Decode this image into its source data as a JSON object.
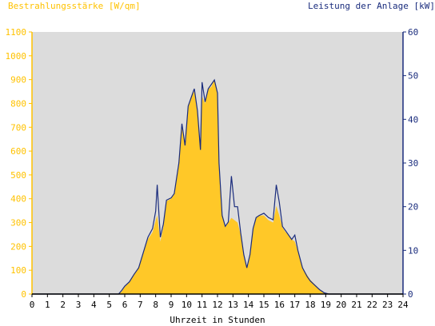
{
  "header": {
    "left_title": "Bestrahlungsstärke [W/qm]",
    "right_title": "Leistung der Anlage [kW]"
  },
  "colors": {
    "irradiance": "#ffc828",
    "power": "#1a2c7d",
    "plot_bg": "#dcdcdc",
    "left_axis": "#ffc200",
    "right_axis": "#1a2c7d"
  },
  "chart_data": {
    "type": "area",
    "xlabel": "Uhrzeit in Stunden",
    "xlim": [
      0,
      24
    ],
    "x_ticks": [
      0,
      1,
      2,
      3,
      4,
      5,
      6,
      7,
      8,
      9,
      10,
      11,
      12,
      13,
      14,
      15,
      16,
      17,
      18,
      19,
      20,
      21,
      22,
      23,
      24
    ],
    "ylim_left": [
      0,
      1100
    ],
    "y_ticks_left": [
      0,
      100,
      200,
      300,
      400,
      500,
      600,
      700,
      800,
      900,
      1000,
      1100
    ],
    "ylim_right": [
      0,
      60
    ],
    "y_ticks_right": [
      0,
      10,
      20,
      30,
      40,
      50,
      60
    ],
    "ylabel_left": "Bestrahlungsstärke [W/qm]",
    "ylabel_right": "Leistung der Anlage [kW]",
    "series": [
      {
        "name": "Bestrahlungsstärke [W/qm]",
        "axis": "left",
        "style": "area",
        "x": [
          0,
          5.6,
          5.8,
          6,
          6.3,
          6.6,
          6.9,
          7.2,
          7.5,
          7.8,
          8,
          8.1,
          8.3,
          8.5,
          8.7,
          9,
          9.2,
          9.5,
          9.7,
          9.9,
          10.1,
          10.3,
          10.5,
          10.7,
          10.9,
          11,
          11.2,
          11.4,
          11.6,
          11.8,
          12,
          12.1,
          12.3,
          12.5,
          12.7,
          12.9,
          13.1,
          13.3,
          13.5,
          13.7,
          13.9,
          14.1,
          14.3,
          14.5,
          14.7,
          15,
          15.3,
          15.6,
          15.8,
          16,
          16.2,
          16.4,
          16.6,
          16.8,
          17,
          17.2,
          17.5,
          17.8,
          18,
          18.3,
          18.6,
          18.9,
          19.2,
          24
        ],
        "y": [
          0,
          0,
          10,
          30,
          50,
          80,
          110,
          170,
          230,
          260,
          310,
          330,
          220,
          280,
          390,
          400,
          420,
          550,
          700,
          620,
          780,
          830,
          850,
          760,
          600,
          830,
          800,
          860,
          870,
          900,
          840,
          560,
          340,
          280,
          300,
          320,
          310,
          300,
          250,
          170,
          110,
          170,
          270,
          320,
          330,
          330,
          310,
          300,
          370,
          330,
          280,
          260,
          250,
          230,
          220,
          180,
          110,
          80,
          60,
          40,
          20,
          5,
          0,
          0
        ]
      },
      {
        "name": "Leistung der Anlage [kW]",
        "axis": "right",
        "style": "line",
        "x": [
          0,
          5.6,
          5.8,
          6,
          6.3,
          6.6,
          6.9,
          7.2,
          7.5,
          7.8,
          8,
          8.1,
          8.3,
          8.5,
          8.7,
          9,
          9.2,
          9.5,
          9.7,
          9.9,
          10.1,
          10.3,
          10.5,
          10.7,
          10.9,
          11,
          11.2,
          11.4,
          11.6,
          11.8,
          12,
          12.1,
          12.3,
          12.5,
          12.7,
          12.9,
          13.1,
          13.3,
          13.5,
          13.7,
          13.9,
          14.1,
          14.3,
          14.5,
          14.7,
          15,
          15.3,
          15.6,
          15.8,
          16,
          16.2,
          16.4,
          16.6,
          16.8,
          17,
          17.2,
          17.5,
          17.8,
          18,
          18.3,
          18.6,
          18.9,
          19.2,
          24
        ],
        "y": [
          0,
          0,
          0.8,
          1.8,
          2.8,
          4.5,
          6,
          9.5,
          13,
          15,
          19,
          25,
          13,
          16,
          21.5,
          22,
          23,
          30,
          39,
          34,
          43,
          45,
          47,
          42,
          33,
          48.5,
          44,
          47,
          48,
          49,
          46,
          30,
          18,
          15.5,
          16.5,
          27,
          20,
          20,
          14,
          9,
          6,
          9,
          15,
          17.5,
          18,
          18.5,
          17.5,
          17,
          25,
          21,
          15.5,
          14.5,
          13.5,
          12.5,
          13.5,
          10,
          6,
          4,
          3,
          2,
          1,
          0.3,
          0,
          0
        ]
      }
    ]
  }
}
